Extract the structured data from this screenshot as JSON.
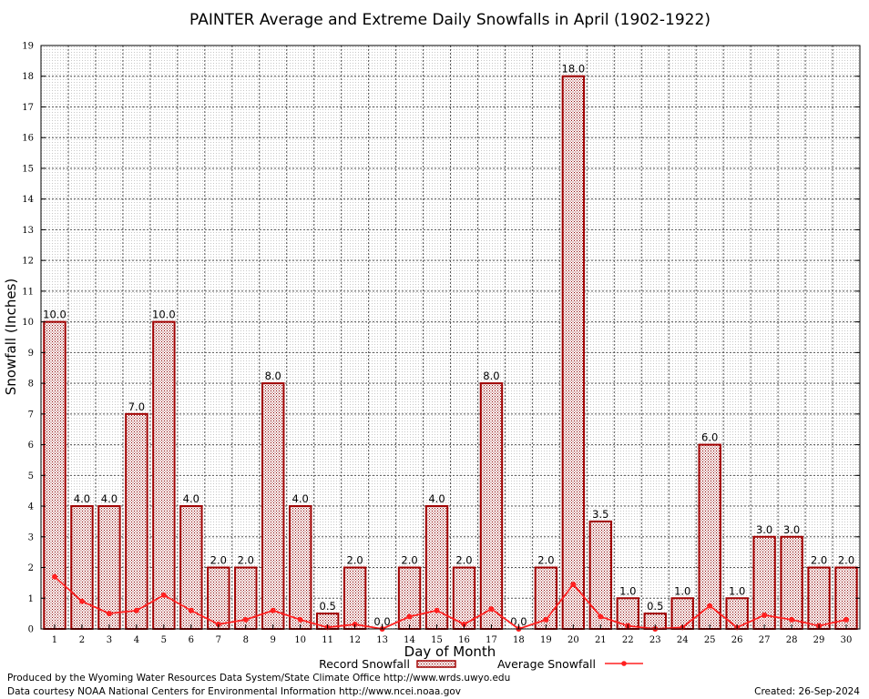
{
  "chart_data": {
    "type": "bar",
    "title": "PAINTER Average and Extreme Daily Snowfalls in April (1902-1922)",
    "xlabel": "Day of Month",
    "ylabel": "Snowfall (Inches)",
    "ylim": [
      0,
      19
    ],
    "yticks": [
      "0",
      "1",
      "2",
      "3",
      "4",
      "5",
      "6",
      "7",
      "8",
      "9",
      "10",
      "11",
      "12",
      "13",
      "14",
      "15",
      "16",
      "17",
      "18",
      "19"
    ],
    "categories": [
      "1",
      "2",
      "3",
      "4",
      "5",
      "6",
      "7",
      "8",
      "9",
      "10",
      "11",
      "12",
      "13",
      "14",
      "15",
      "16",
      "17",
      "18",
      "19",
      "20",
      "21",
      "22",
      "23",
      "24",
      "25",
      "26",
      "27",
      "28",
      "29",
      "30"
    ],
    "series": [
      {
        "name": "Record Snowfall",
        "type": "bar",
        "color": "#a00000",
        "values": [
          10.0,
          4.0,
          4.0,
          7.0,
          10.0,
          4.0,
          2.0,
          2.0,
          8.0,
          4.0,
          0.5,
          2.0,
          0.0,
          2.0,
          4.0,
          2.0,
          8.0,
          0.0,
          2.0,
          18.0,
          3.5,
          1.0,
          0.5,
          1.0,
          6.0,
          1.0,
          3.0,
          3.0,
          2.0,
          2.0
        ],
        "labels": [
          "10.0",
          "4.0",
          "4.0",
          "7.0",
          "10.0",
          "4.0",
          "2.0",
          "2.0",
          "8.0",
          "4.0",
          "0.5",
          "2.0",
          "0.0",
          "2.0",
          "4.0",
          "2.0",
          "8.0",
          "0.0",
          "2.0",
          "18.0",
          "3.5",
          "1.0",
          "0.5",
          "1.0",
          "6.0",
          "1.0",
          "3.0",
          "3.0",
          "2.0",
          "2.0"
        ]
      },
      {
        "name": "Average Snowfall",
        "type": "line",
        "color": "#ff2020",
        "values": [
          1.7,
          0.9,
          0.5,
          0.6,
          1.1,
          0.6,
          0.15,
          0.3,
          0.6,
          0.3,
          0.05,
          0.15,
          0.0,
          0.4,
          0.6,
          0.15,
          0.65,
          0.0,
          0.3,
          1.45,
          0.4,
          0.1,
          0.0,
          0.05,
          0.75,
          0.05,
          0.45,
          0.3,
          0.1,
          0.3
        ]
      }
    ],
    "grid": true,
    "legend": "bottom-center"
  },
  "footer": {
    "produced_by": "Produced by the Wyoming Water Resources Data System/State Climate Office http://www.wrds.uwyo.edu",
    "courtesy": "Data courtesy NOAA National Centers for Environmental Information http://www.ncei.noaa.gov",
    "created": "Created:  26-Sep-2024"
  }
}
